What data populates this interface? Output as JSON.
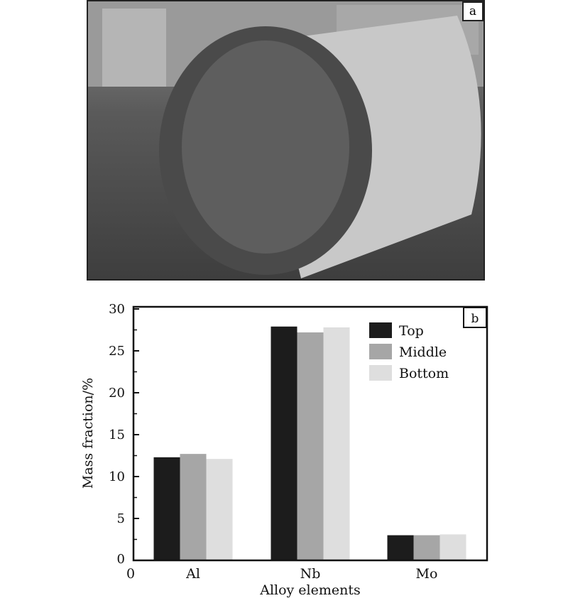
{
  "panel_a": {
    "label": "a"
  },
  "chart_data": {
    "type": "bar",
    "panel_label": "b",
    "categories": [
      "Al",
      "Nb",
      "Mo"
    ],
    "series": [
      {
        "name": "Top",
        "values": [
          12.3,
          27.9,
          3.0
        ],
        "color": "#1c1c1c"
      },
      {
        "name": "Middle",
        "values": [
          12.7,
          27.2,
          3.0
        ],
        "color": "#a6a6a6"
      },
      {
        "name": "Bottom",
        "values": [
          12.1,
          27.8,
          3.1
        ],
        "color": "#dedede"
      }
    ],
    "xlabel": "Alloy elements",
    "ylabel": "Mass fraction/%",
    "ylim": [
      0,
      30
    ],
    "yticks": [
      0,
      5,
      10,
      15,
      20,
      25,
      30
    ],
    "x_origin_label": "0",
    "legend_position": "top-right",
    "grid": false
  }
}
